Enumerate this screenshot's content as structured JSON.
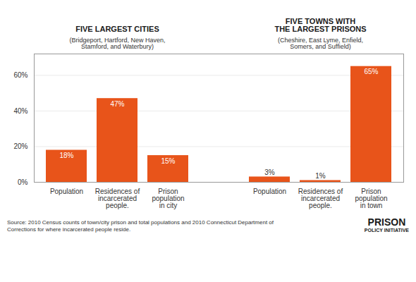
{
  "chart_data": {
    "type": "bar",
    "categories": [
      "Population",
      "Residences of\nincarcerated\npeople.",
      "Prison\npopulation\nin city",
      "Population",
      "Residences of\nincarcerated\npeople.",
      "Prison\npopulation\nin town"
    ],
    "values": [
      18,
      47,
      15,
      3,
      1,
      65
    ],
    "value_labels": [
      "18%",
      "47%",
      "15%",
      "3%",
      "1%",
      "65%"
    ],
    "data_labels": true,
    "color": "#E8541A",
    "ylim": [
      0,
      72
    ],
    "yticks": [
      {
        "value": 0,
        "label": "0%"
      },
      {
        "value": 20,
        "label": "20%"
      },
      {
        "value": 40,
        "label": "40%"
      },
      {
        "value": 60,
        "label": "60%"
      }
    ],
    "grid": true,
    "groups": [
      {
        "title": "FIVE LARGEST CITIES",
        "subtitle": "(Bridgeport, Hartford, New Haven,\nStamford, and Waterbury)"
      },
      {
        "title": "FIVE TOWNS WITH\nTHE LARGEST PRISONS",
        "subtitle": "(Cheshire, East Lyme, Enfield,\nSomers, and Suffield)"
      }
    ],
    "annotations": [
      "Source: 2010 Census counts of town/city prison and total populations and 2010 Connecticut Department of\nCorrections for where incarcerated people reside.",
      "PRISON",
      "POLICY INITIATIVE"
    ]
  }
}
